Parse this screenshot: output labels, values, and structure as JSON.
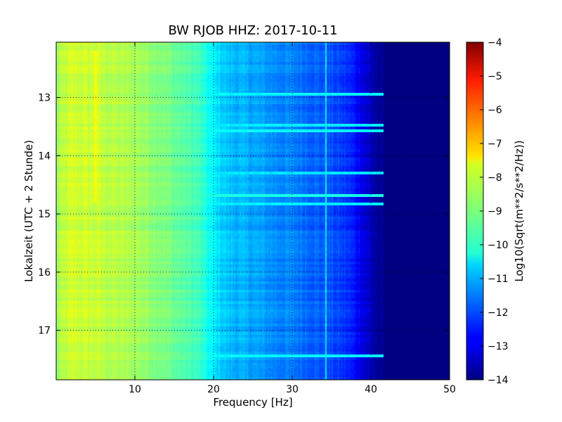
{
  "chart_data": {
    "type": "heatmap",
    "title": "BW RJOB HHZ: 2017-10-11",
    "xlabel": "Frequency [Hz]",
    "ylabel": "Lokalzeit (UTC + 2 Stunde)",
    "xlim": [
      0,
      50
    ],
    "ylim": [
      12.05,
      17.85
    ],
    "y_inverted": true,
    "x_ticks": [
      10,
      20,
      30,
      40,
      50
    ],
    "y_ticks": [
      13,
      14,
      15,
      16,
      17
    ],
    "grid": true,
    "colormap": "jet",
    "colorbar": {
      "label": "Log10(Sqrt(m**2/s**2/Hz))",
      "range": [
        -14,
        -4
      ],
      "ticks": [
        -4,
        -5,
        -6,
        -7,
        -8,
        -9,
        -10,
        -11,
        -12,
        -13,
        -14
      ]
    },
    "spectral_profile": {
      "frequency_hz": [
        0,
        1,
        2,
        5,
        8,
        10,
        13,
        15,
        18,
        20,
        22,
        25,
        28,
        30,
        33,
        35,
        37,
        38,
        39,
        40,
        41,
        42,
        50
      ],
      "log10_amplitude": [
        -8.7,
        -8.4,
        -8.2,
        -8.3,
        -8.5,
        -8.6,
        -8.9,
        -9.2,
        -9.6,
        -10.4,
        -10.9,
        -11.1,
        -11.4,
        -11.5,
        -11.8,
        -12.0,
        -12.3,
        -12.6,
        -13.0,
        -13.4,
        -13.8,
        -14,
        -14
      ]
    },
    "annotations": [
      {
        "kind": "narrow-line",
        "frequency_hz": 5.0,
        "time": [
          12.2,
          14.8
        ],
        "log10_amplitude": -7.8
      },
      {
        "kind": "narrow-line",
        "frequency_hz": 34.3,
        "time": [
          12.05,
          17.85
        ],
        "log10_amplitude": -10.6
      },
      {
        "kind": "broadband-band",
        "time": 12.94,
        "log10_amplitude": -10.3
      },
      {
        "kind": "broadband-band",
        "time": 13.47,
        "log10_amplitude": -10.4
      },
      {
        "kind": "broadband-band",
        "time": 13.57,
        "log10_amplitude": -10.2
      },
      {
        "kind": "broadband-band",
        "time": 14.28,
        "log10_amplitude": -10.5
      },
      {
        "kind": "broadband-band",
        "time": 14.7,
        "log10_amplitude": -10.0
      },
      {
        "kind": "broadband-band",
        "time": 14.83,
        "log10_amplitude": -10.4
      },
      {
        "kind": "broadband-band",
        "time": 17.42,
        "log10_amplitude": -10.3
      }
    ]
  }
}
